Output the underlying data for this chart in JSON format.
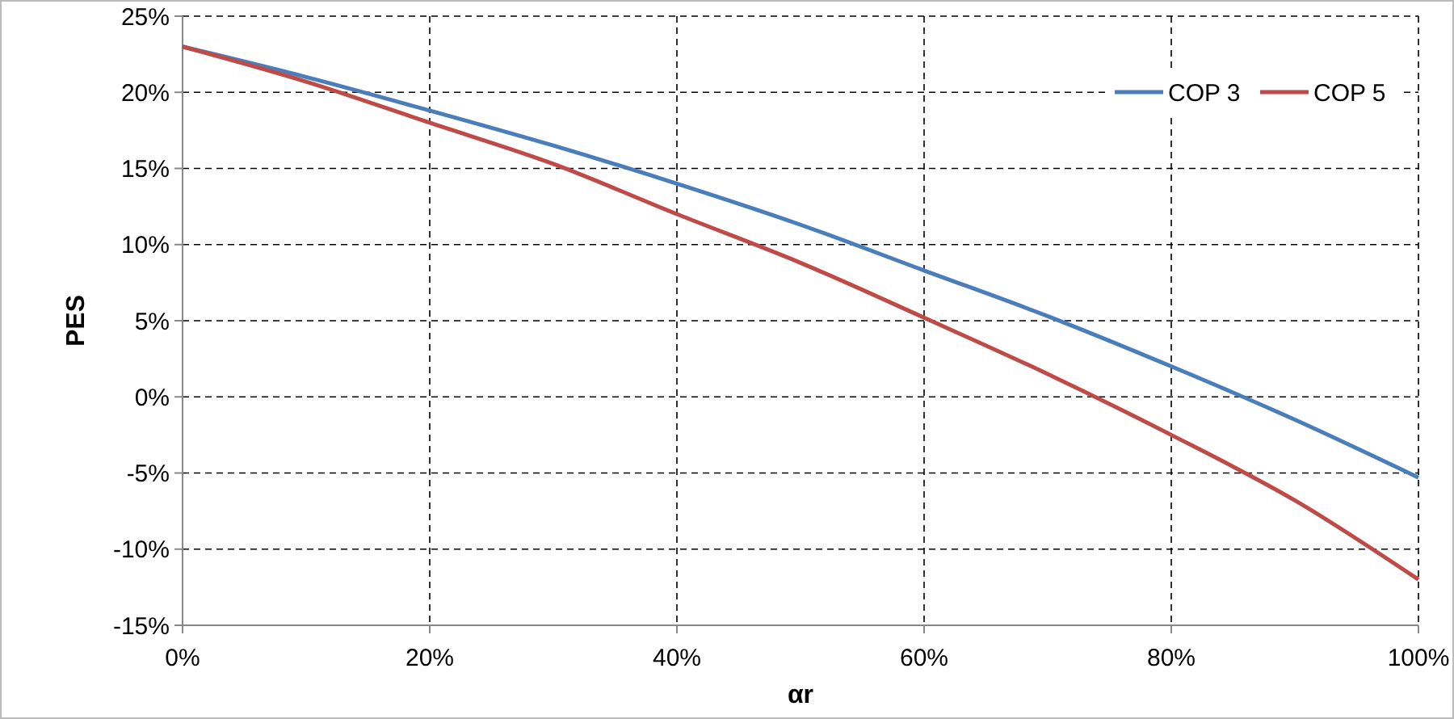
{
  "chart_data": {
    "type": "line",
    "xlabel": "αr",
    "ylabel": "PES",
    "xlim": [
      0,
      100
    ],
    "ylim": [
      -15,
      25
    ],
    "xticks": [
      {
        "value": 0,
        "label": "0%"
      },
      {
        "value": 20,
        "label": "20%"
      },
      {
        "value": 40,
        "label": "40%"
      },
      {
        "value": 60,
        "label": "60%"
      },
      {
        "value": 80,
        "label": "80%"
      },
      {
        "value": 100,
        "label": "100%"
      }
    ],
    "yticks": [
      {
        "value": -15,
        "label": "-15%"
      },
      {
        "value": -10,
        "label": "-10%"
      },
      {
        "value": -5,
        "label": "-5%"
      },
      {
        "value": 0,
        "label": "0%"
      },
      {
        "value": 5,
        "label": "5%"
      },
      {
        "value": 10,
        "label": "10%"
      },
      {
        "value": 15,
        "label": "15%"
      },
      {
        "value": 20,
        "label": "20%"
      },
      {
        "value": 25,
        "label": "25%"
      }
    ],
    "x": [
      0,
      10,
      20,
      30,
      40,
      50,
      60,
      70,
      80,
      90,
      100
    ],
    "series": [
      {
        "name": "COP 3",
        "color": "#4a7ebb",
        "values": [
          23,
          21,
          18.8,
          16.5,
          14,
          11.3,
          8.3,
          5.3,
          2,
          -1.5,
          -5.3
        ]
      },
      {
        "name": "COP 5",
        "color": "#be4b48",
        "values": [
          23,
          20.7,
          18,
          15.3,
          12,
          8.8,
          5.2,
          1.5,
          -2.5,
          -6.8,
          -12
        ]
      }
    ],
    "grid": true,
    "legend": "top right",
    "line_style": "solid",
    "marker": "none"
  }
}
